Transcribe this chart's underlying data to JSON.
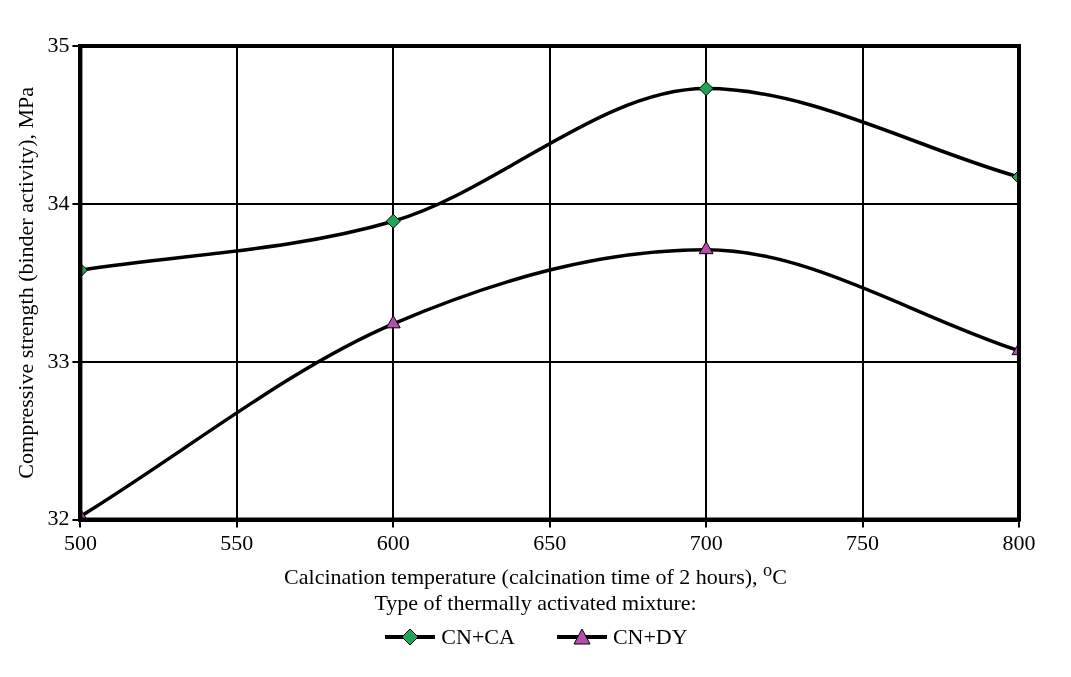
{
  "chart_data": {
    "type": "line",
    "xlabel": "Calcination temperature (calcination time of 2 hours), $^{o}$C",
    "ylabel": "Compressive strength (binder activity), MPa",
    "legend_title": "Type of thermally activated mixture:",
    "legend": "bottom",
    "grid": true,
    "x": [
      500,
      600,
      700,
      800
    ],
    "xlim": [
      500,
      800
    ],
    "xticks": [
      500,
      550,
      600,
      650,
      700,
      750,
      800
    ],
    "ylim": [
      32,
      35
    ],
    "yticks": [
      32,
      33,
      34,
      35
    ],
    "series": [
      {
        "name": "CN+CA",
        "color": "#23a455",
        "marker": "diamond",
        "values": [
          33.58,
          33.89,
          34.73,
          34.17
        ]
      },
      {
        "name": "CN+DY",
        "color": "#b44fae",
        "marker": "triangle",
        "values": [
          32.02,
          33.24,
          33.71,
          33.07
        ]
      }
    ]
  }
}
